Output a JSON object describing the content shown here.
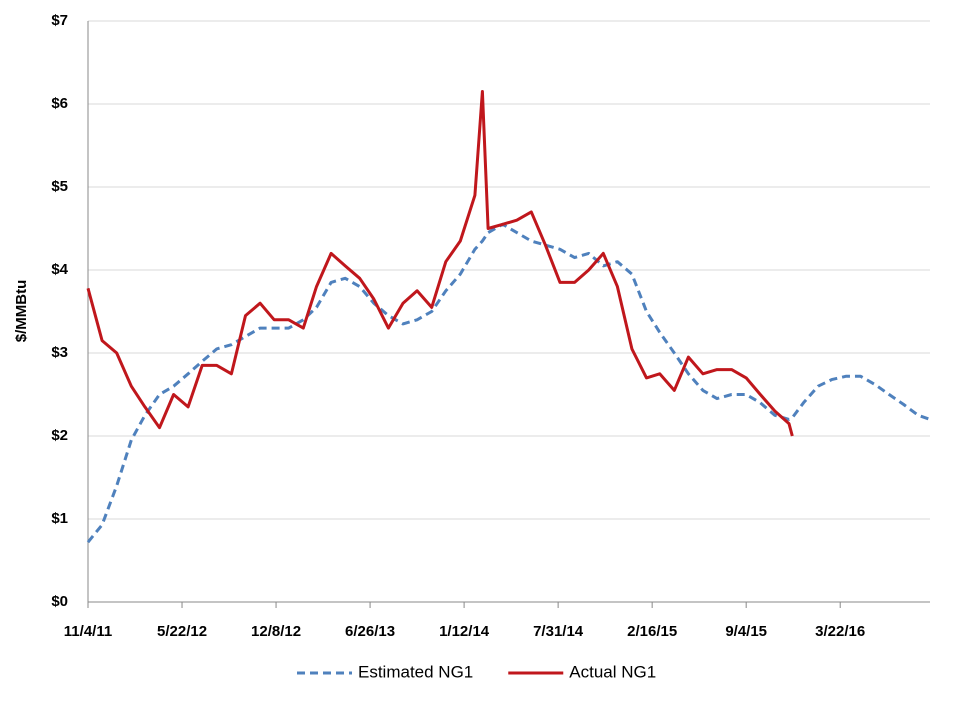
{
  "chart_data": {
    "type": "line",
    "y_label": "$/MMBtu",
    "x": [
      "11/4/11",
      "12/4/11",
      "1/4/12",
      "2/4/12",
      "3/4/12",
      "4/4/12",
      "5/4/12",
      "6/4/12",
      "7/4/12",
      "8/4/12",
      "9/4/12",
      "10/4/12",
      "11/4/12",
      "12/4/12",
      "1/4/13",
      "2/4/13",
      "3/4/13",
      "4/4/13",
      "5/4/13",
      "6/4/13",
      "7/4/13",
      "8/4/13",
      "9/4/13",
      "10/4/13",
      "11/4/13",
      "12/4/13",
      "1/4/14",
      "2/4/14",
      "2/20/14",
      "3/4/14",
      "4/4/14",
      "5/4/14",
      "6/4/14",
      "7/4/14",
      "8/4/14",
      "9/4/14",
      "10/4/14",
      "11/4/14",
      "12/4/14",
      "1/4/15",
      "2/4/15",
      "3/4/15",
      "4/4/15",
      "5/4/15",
      "6/4/15",
      "7/4/15",
      "8/4/15",
      "9/4/15",
      "10/4/15",
      "11/4/15",
      "12/4/15",
      "12/11/15",
      "1/4/16",
      "2/4/16",
      "3/4/16",
      "4/4/16",
      "5/4/16",
      "6/4/16",
      "7/4/16",
      "8/4/16",
      "9/4/16",
      "9/29/16"
    ],
    "series": [
      {
        "name": "Estimated NG1",
        "color": "#4f81bd",
        "dashed": true,
        "values": [
          0.72,
          0.93,
          1.4,
          1.95,
          2.25,
          2.5,
          2.6,
          2.75,
          2.9,
          3.05,
          3.1,
          3.2,
          3.3,
          3.3,
          3.3,
          3.4,
          3.55,
          3.85,
          3.9,
          3.8,
          3.6,
          3.45,
          3.35,
          3.4,
          3.5,
          3.75,
          3.95,
          4.25,
          4.35,
          4.45,
          4.55,
          4.45,
          4.35,
          4.3,
          4.25,
          4.15,
          4.2,
          4.05,
          4.1,
          3.95,
          3.5,
          3.25,
          3.0,
          2.75,
          2.55,
          2.45,
          2.5,
          2.5,
          2.4,
          2.25,
          2.2,
          2.22,
          2.4,
          2.6,
          2.68,
          2.72,
          2.72,
          2.62,
          2.5,
          2.38,
          2.25,
          2.2
        ]
      },
      {
        "name": "Actual NG1",
        "color": "#c0171c",
        "dashed": false,
        "values": [
          3.78,
          3.15,
          3.0,
          2.6,
          2.35,
          2.1,
          2.5,
          2.35,
          2.85,
          2.85,
          2.75,
          3.45,
          3.6,
          3.4,
          3.4,
          3.3,
          3.8,
          4.2,
          4.05,
          3.9,
          3.65,
          3.3,
          3.6,
          3.75,
          3.55,
          4.1,
          4.35,
          4.9,
          6.15,
          4.5,
          4.55,
          4.6,
          4.7,
          4.3,
          3.85,
          3.85,
          4.0,
          4.2,
          3.8,
          3.05,
          2.7,
          2.75,
          2.55,
          2.95,
          2.75,
          2.8,
          2.8,
          2.7,
          2.5,
          2.3,
          2.15,
          2.0,
          null,
          null,
          null,
          null,
          null,
          null,
          null,
          null,
          null,
          null
        ]
      }
    ],
    "xlim": [
      "11/4/11",
      "9/29/16"
    ],
    "xticks": [
      "11/4/11",
      "5/22/12",
      "12/8/12",
      "6/26/13",
      "1/12/14",
      "7/31/14",
      "2/16/15",
      "9/4/15",
      "3/22/16"
    ],
    "ylim": [
      0,
      7
    ],
    "yticks": [
      {
        "value": 0,
        "label": "$0"
      },
      {
        "value": 1,
        "label": "$1"
      },
      {
        "value": 2,
        "label": "$2"
      },
      {
        "value": 3,
        "label": "$3"
      },
      {
        "value": 4,
        "label": "$4"
      },
      {
        "value": 5,
        "label": "$5"
      },
      {
        "value": 6,
        "label": "$6"
      },
      {
        "value": 7,
        "label": "$7"
      }
    ],
    "grid": true,
    "legend": "bottom"
  }
}
